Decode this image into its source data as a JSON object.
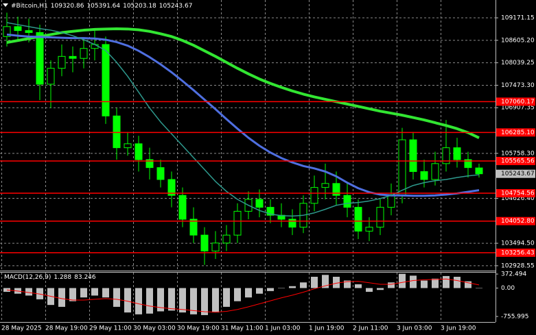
{
  "chart_data": [
    {
      "type": "candlestick",
      "title": "#Bitcoin,H1",
      "header_values": [
        109320.86,
        105391.64,
        105203.18,
        105243.67
      ],
      "categories": [
        "28 May 2025",
        null,
        null,
        null,
        "28 May 19:00",
        null,
        null,
        null,
        "29 May 11:00",
        null,
        null,
        null,
        "30 May 03:00",
        null,
        null,
        null,
        "30 May 19:00",
        null,
        null,
        null,
        "31 May 11:00",
        null,
        null,
        null,
        "1 Jun 03:00",
        null,
        null,
        null,
        "1 Jun 19:00",
        null,
        null,
        null,
        "2 Jun 11:00",
        null,
        null,
        null,
        "3 Jun 03:00",
        null,
        null,
        null,
        "3 Jun 19:00",
        null,
        null,
        null
      ],
      "open": [
        108700,
        108950,
        108850,
        108800,
        107500,
        107900,
        108200,
        108150,
        108400,
        108500,
        106700,
        105900,
        106000,
        105600,
        105400,
        105100,
        104700,
        104100,
        103700,
        103300,
        103500,
        103700,
        104300,
        104600,
        104400,
        104200,
        104100,
        103900,
        104500,
        104900,
        105000,
        104700,
        104400,
        103800,
        103900,
        104400,
        104700,
        106100,
        105300,
        105100,
        105500,
        105900,
        105600,
        105391.64
      ],
      "high": [
        109300,
        109200,
        109150,
        109000,
        108100,
        108500,
        108450,
        108600,
        108850,
        108700,
        106900,
        106300,
        106200,
        105900,
        105600,
        105300,
        104900,
        104400,
        103900,
        103800,
        103950,
        104500,
        104800,
        104850,
        104600,
        104500,
        104350,
        104700,
        105200,
        105500,
        105300,
        105000,
        104600,
        104150,
        104600,
        105000,
        106400,
        106300,
        105600,
        105800,
        106600,
        106150,
        105800,
        105500
      ],
      "low": [
        108450,
        108600,
        108550,
        107100,
        106900,
        107700,
        107800,
        107900,
        108100,
        106500,
        105600,
        105700,
        105300,
        105100,
        104900,
        104400,
        103900,
        103500,
        102950,
        103100,
        103300,
        103500,
        104100,
        104150,
        104000,
        103900,
        103700,
        103750,
        104300,
        104600,
        104450,
        104150,
        103600,
        103550,
        103700,
        104200,
        104500,
        105100,
        104900,
        104950,
        105300,
        105400,
        105150,
        105150
      ],
      "close": [
        108950,
        108850,
        108800,
        107500,
        107900,
        108200,
        108150,
        108400,
        108500,
        106700,
        105900,
        106000,
        105600,
        105400,
        105100,
        104700,
        104100,
        103700,
        103300,
        103500,
        103700,
        104300,
        104600,
        104400,
        104200,
        104100,
        103900,
        104500,
        104900,
        105000,
        104700,
        104400,
        103800,
        103900,
        104400,
        104700,
        106100,
        105300,
        105100,
        105500,
        105900,
        105600,
        105400,
        105243.67
      ],
      "color": "#00ff00",
      "series": [
        {
          "color": "#32e632",
          "values": [
            108550,
            108600,
            108650,
            108700,
            108750,
            108800,
            108830,
            108860,
            108880,
            108890,
            108895,
            108890,
            108870,
            108830,
            108770,
            108700,
            108600,
            108480,
            108340,
            108200,
            108050,
            107900,
            107760,
            107630,
            107520,
            107420,
            107330,
            107250,
            107180,
            107120,
            107060,
            107000,
            106940,
            106880,
            106820,
            106770,
            106720,
            106660,
            106600,
            106530,
            106460,
            106380,
            106280,
            106150
          ]
        },
        {
          "color": "#4f6fe0",
          "values": [
            108750,
            108720,
            108700,
            108690,
            108680,
            108670,
            108660,
            108660,
            108650,
            108620,
            108560,
            108470,
            108340,
            108180,
            108000,
            107800,
            107580,
            107350,
            107110,
            106870,
            106620,
            106380,
            106150,
            105950,
            105780,
            105640,
            105530,
            105440,
            105380,
            105300,
            105180,
            105020,
            104880,
            104780,
            104720,
            104700,
            104700,
            104690,
            104690,
            104700,
            104720,
            104750,
            104790,
            104830
          ]
        },
        {
          "color": "#2e9a8e",
          "values": [
            109050,
            109000,
            108950,
            108900,
            108860,
            108800,
            108720,
            108620,
            108500,
            108350,
            108050,
            107700,
            107300,
            106900,
            106550,
            106250,
            105950,
            105650,
            105350,
            105050,
            104800,
            104600,
            104450,
            104320,
            104230,
            104190,
            104180,
            104200,
            104260,
            104350,
            104450,
            104500,
            104520,
            104560,
            104620,
            104700,
            104830,
            104950,
            105020,
            105070,
            105100,
            105150,
            105190,
            105220
          ]
        }
      ],
      "ylim": [
        102806,
        109620
      ],
      "yticks": [
        109171.15,
        {
          "value": 108605.2,
          "label": "108605.20"
        },
        108039.25,
        {
          "value": 107473.3,
          "label": "107473.30"
        },
        106907.35,
        {
          "value": 105758.3,
          "label": "105758.30"
        },
        {
          "value": 104626.4,
          "label": "104626.40"
        },
        {
          "value": 103494.5,
          "label": "103494.50"
        },
        102928.55
      ],
      "grid": true,
      "levels": {
        "color": "#ff0000",
        "values": [
          107060.17,
          {
            "value": 106285.1,
            "label": "106285.10"
          },
          105565.56,
          104754.56,
          {
            "value": 104052.8,
            "label": "104052.80"
          },
          103256.43
        ]
      },
      "current_price": 105243.67
    },
    {
      "type": "macd",
      "title": "MACD(12,26,9)",
      "header_values": [
        1.288,
        83.246
      ],
      "histogram": {
        "color": "#c0c0c0",
        "values": [
          -100,
          -150,
          -200,
          -300,
          -450,
          -500,
          -350,
          -250,
          -200,
          -250,
          -500,
          -650,
          -700,
          -680,
          -620,
          -600,
          -650,
          -700,
          -720,
          -650,
          -500,
          -350,
          -250,
          -150,
          -80,
          0,
          50,
          150,
          300,
          350,
          300,
          200,
          100,
          -100,
          -50,
          150,
          380,
          330,
          200,
          250,
          320,
          300,
          180,
          1.288
        ]
      },
      "signal": {
        "color": "#ff0000",
        "values": [
          -50,
          -80,
          -120,
          -160,
          -220,
          -280,
          -320,
          -320,
          -300,
          -280,
          -300,
          -350,
          -420,
          -480,
          -520,
          -550,
          -570,
          -600,
          -630,
          -640,
          -620,
          -570,
          -500,
          -420,
          -340,
          -260,
          -190,
          -110,
          -20,
          60,
          130,
          170,
          180,
          140,
          100,
          100,
          150,
          200,
          220,
          230,
          240,
          200,
          140,
          83.246
        ]
      },
      "ylim": [
        -903,
        428
      ],
      "yticks": [
        372.494,
        {
          "value": 0,
          "label": "0.00"
        },
        -755.995
      ],
      "grid": true
    }
  ]
}
